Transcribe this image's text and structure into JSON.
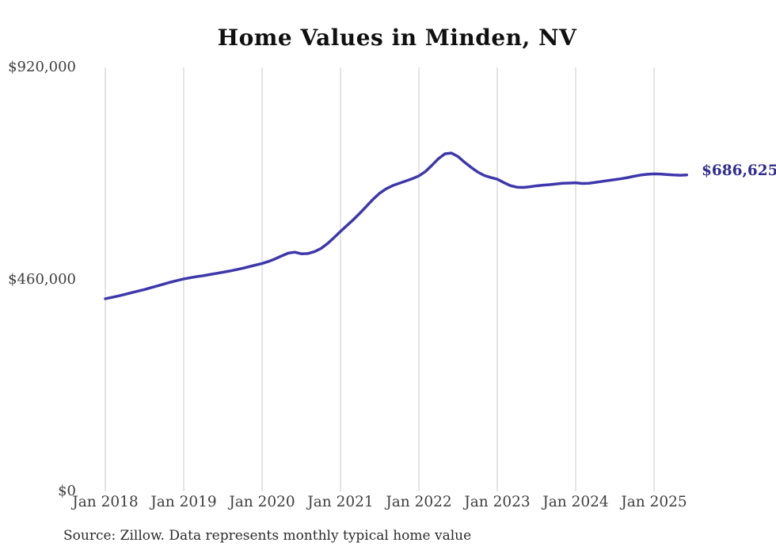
{
  "chart": {
    "title": "Home Values in Minden, NV",
    "end_label": "$686,625",
    "source_note": "Source: Zillow. Data represents monthly typical home value"
  },
  "chart_data": {
    "type": "line",
    "title": "Home Values in Minden, NV",
    "xlabel": "",
    "ylabel": "",
    "ylim": [
      0,
      920000
    ],
    "grid": "vertical-only",
    "legend": "none",
    "line_color": "#3e37ab",
    "end_label_color": "#302d91",
    "grid_color": "#c9c9c9",
    "y_ticks": [
      {
        "value": 920000,
        "label": "$920,000"
      },
      {
        "value": 460000,
        "label": "$460,000"
      },
      {
        "value": 0,
        "label": "$0"
      }
    ],
    "x_ticks": [
      {
        "month": "2018-01",
        "label": "Jan 2018"
      },
      {
        "month": "2019-01",
        "label": "Jan 2019"
      },
      {
        "month": "2020-01",
        "label": "Jan 2020"
      },
      {
        "month": "2021-01",
        "label": "Jan 2021"
      },
      {
        "month": "2022-01",
        "label": "Jan 2022"
      },
      {
        "month": "2023-01",
        "label": "Jan 2023"
      },
      {
        "month": "2024-01",
        "label": "Jan 2024"
      },
      {
        "month": "2025-01",
        "label": "Jan 2025"
      }
    ],
    "x_start_month": "2018-01",
    "end_annotation": {
      "label": "$686,625",
      "value": 686625,
      "month": "2025-06"
    },
    "values": [
      418000,
      421000,
      424000,
      427500,
      431000,
      434500,
      438000,
      442000,
      446000,
      450000,
      454000,
      457500,
      461000,
      463500,
      466000,
      468000,
      470500,
      473000,
      475500,
      478000,
      481000,
      484000,
      487500,
      491000,
      494500,
      499000,
      504500,
      511000,
      517000,
      519000,
      515500,
      516000,
      520000,
      527000,
      537500,
      550500,
      564000,
      577000,
      590000,
      604000,
      619000,
      634000,
      647000,
      656500,
      663500,
      668500,
      673500,
      678500,
      684500,
      694000,
      707500,
      722000,
      732500,
      734000,
      726500,
      714000,
      703000,
      693000,
      685500,
      681000,
      677500,
      670000,
      663500,
      660000,
      659500,
      661000,
      663000,
      664500,
      665500,
      667000,
      668500,
      669000,
      669500,
      668000,
      668500,
      670500,
      672500,
      674500,
      676500,
      678500,
      681000,
      684000,
      686500,
      688000,
      689000,
      688500,
      687500,
      686500,
      686000,
      686625
    ]
  }
}
